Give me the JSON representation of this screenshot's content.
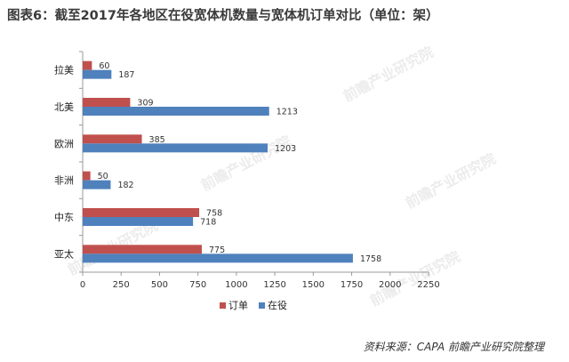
{
  "title": "图表6：截至2017年各地区在役宽体机数量与宽体机订单对比（单位：架）",
  "source": "资料来源：CAPA 前瞻产业研究院整理",
  "watermark": "前瞻产业研究院",
  "chart_data": {
    "type": "bar",
    "orientation": "horizontal",
    "categories": [
      "拉美",
      "北美",
      "欧洲",
      "非洲",
      "中东",
      "亚太"
    ],
    "series": [
      {
        "name": "订单",
        "color": "#c0504d",
        "values": [
          60,
          309,
          385,
          50,
          758,
          775
        ]
      },
      {
        "name": "在役",
        "color": "#4f81bd",
        "values": [
          187,
          1213,
          1203,
          182,
          718,
          1758
        ]
      }
    ],
    "xlim": [
      0,
      2250
    ],
    "xticks": [
      0,
      250,
      500,
      750,
      1000,
      1250,
      1500,
      1750,
      2000,
      2250
    ],
    "legend": "bottom",
    "grid": false
  }
}
